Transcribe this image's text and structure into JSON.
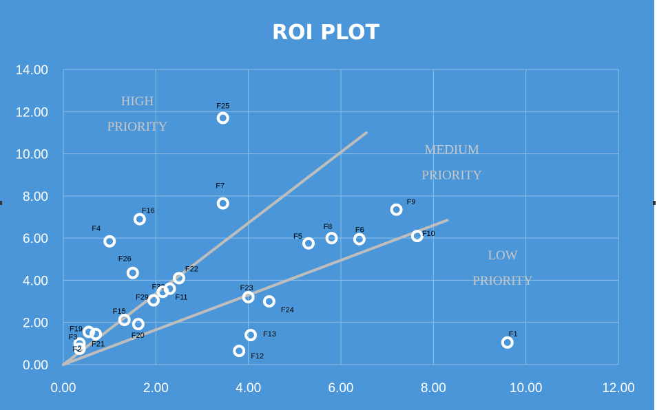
{
  "chart_data": {
    "type": "scatter",
    "title": "ROI PLOT",
    "xlim": [
      0,
      12
    ],
    "ylim": [
      0,
      14
    ],
    "xticks": [
      "0.00",
      "2.00",
      "4.00",
      "6.00",
      "8.00",
      "10.00",
      "12.00"
    ],
    "yticks": [
      "0.00",
      "2.00",
      "4.00",
      "6.00",
      "8.00",
      "10.00",
      "12.00",
      "14.00"
    ],
    "grid": true,
    "colors": {
      "background": "#4a96d8",
      "grid": "#8fc0ea",
      "marker": "#ffffff",
      "trendline": "#bdbdbd",
      "zone_text": "#c8c8c8"
    },
    "points": [
      {
        "label": "F25",
        "x": 3.45,
        "y": 11.7
      },
      {
        "label": "F7",
        "x": 3.45,
        "y": 7.65
      },
      {
        "label": "F16",
        "x": 1.65,
        "y": 6.9
      },
      {
        "label": "F4",
        "x": 1.0,
        "y": 5.85
      },
      {
        "label": "F26",
        "x": 1.5,
        "y": 4.35
      },
      {
        "label": "F22",
        "x": 2.5,
        "y": 4.1
      },
      {
        "label": "F30",
        "x": 2.3,
        "y": 3.6
      },
      {
        "label": "F29",
        "x": 1.95,
        "y": 3.05
      },
      {
        "label": "F11",
        "x": 2.15,
        "y": 3.45
      },
      {
        "label": "F15",
        "x": 1.32,
        "y": 2.12
      },
      {
        "label": "F20",
        "x": 1.62,
        "y": 1.92
      },
      {
        "label": "F19",
        "x": 0.55,
        "y": 1.55
      },
      {
        "label": "F21",
        "x": 0.7,
        "y": 1.45
      },
      {
        "label": "F3",
        "x": 0.35,
        "y": 1.0
      },
      {
        "label": "F2",
        "x": 0.35,
        "y": 0.75
      },
      {
        "label": "F5",
        "x": 5.3,
        "y": 5.75
      },
      {
        "label": "F8",
        "x": 5.8,
        "y": 6.0
      },
      {
        "label": "F6",
        "x": 6.4,
        "y": 5.95
      },
      {
        "label": "F9",
        "x": 7.2,
        "y": 7.35
      },
      {
        "label": "F10",
        "x": 7.65,
        "y": 6.1
      },
      {
        "label": "F23",
        "x": 4.0,
        "y": 3.2
      },
      {
        "label": "F24",
        "x": 4.45,
        "y": 3.0
      },
      {
        "label": "F13",
        "x": 4.05,
        "y": 1.4
      },
      {
        "label": "F12",
        "x": 3.8,
        "y": 0.65
      },
      {
        "label": "F1",
        "x": 9.6,
        "y": 1.05
      }
    ],
    "lines": [
      {
        "x": [
          0,
          6.55
        ],
        "y": [
          0,
          11.0
        ]
      },
      {
        "x": [
          0,
          8.3
        ],
        "y": [
          0,
          6.85
        ]
      }
    ],
    "zones": [
      {
        "lines": [
          "HIGH",
          "PRIORITY"
        ],
        "x": 1.6,
        "y": 12.3
      },
      {
        "lines": [
          "MEDIUM",
          "PRIORITY"
        ],
        "x": 8.4,
        "y": 10.0
      },
      {
        "lines": [
          "LOW",
          "PRIORITY"
        ],
        "x": 9.5,
        "y": 5.0
      }
    ]
  }
}
